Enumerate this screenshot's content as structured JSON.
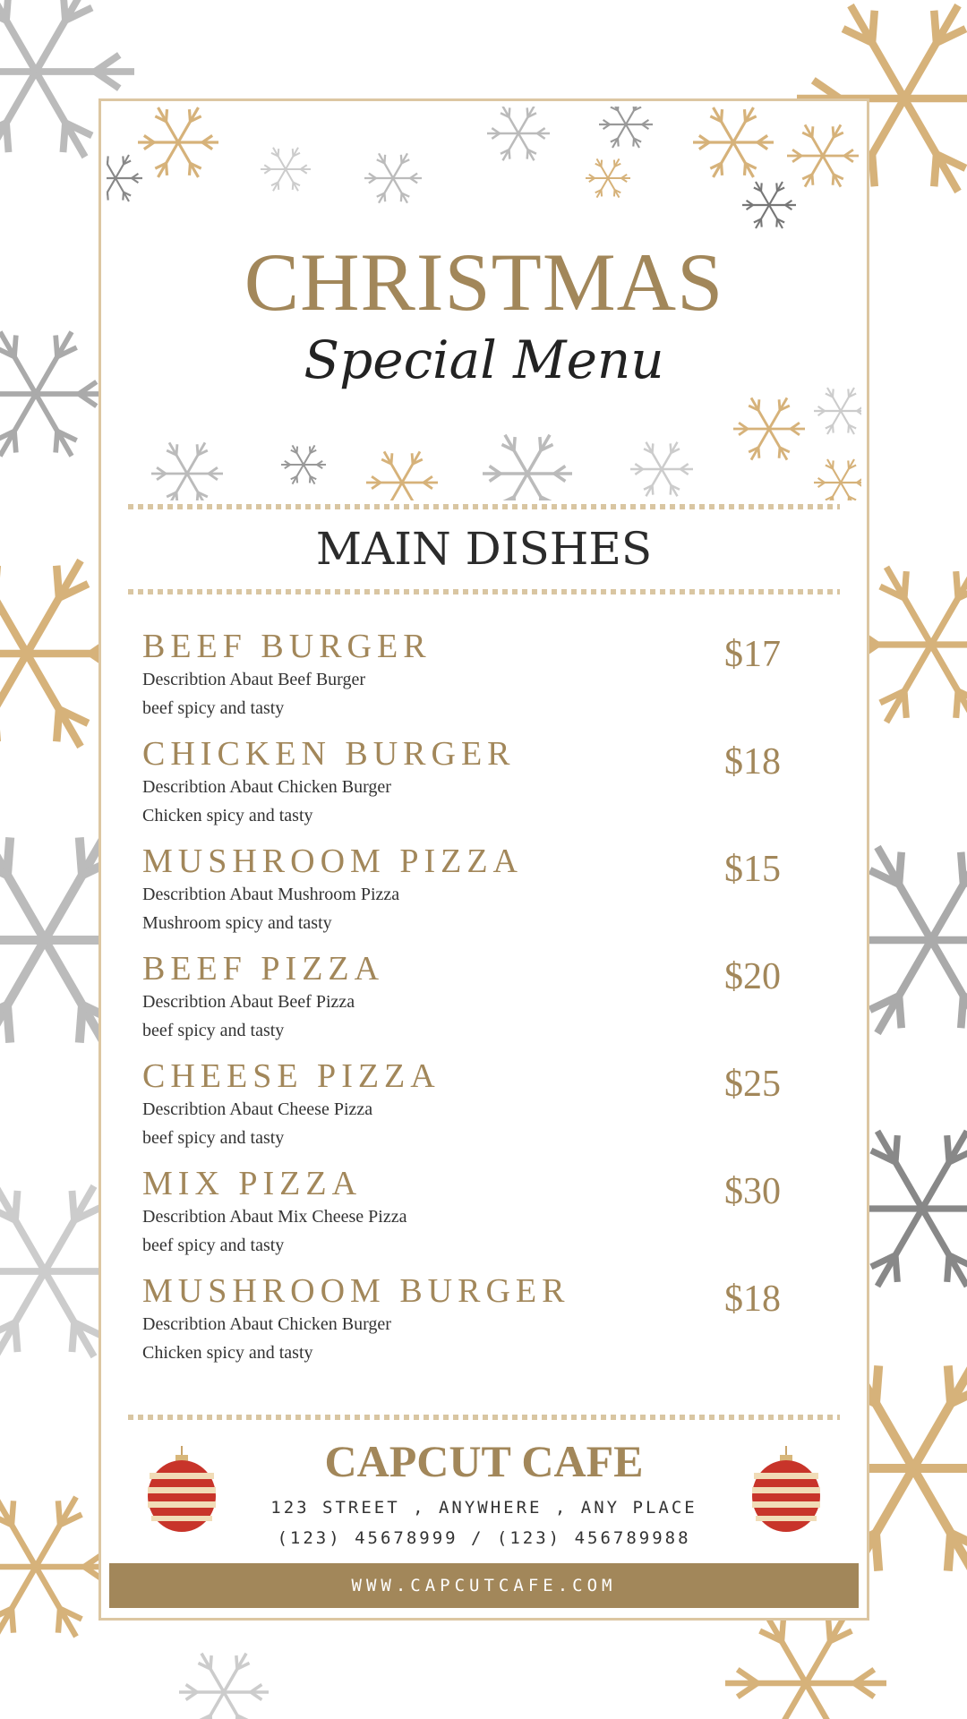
{
  "header": {
    "title": "CHRISTMAS",
    "subtitle": "Special Menu"
  },
  "section": {
    "title": "MAIN DISHES"
  },
  "items": [
    {
      "name": "BEEF BURGER",
      "desc1": "Describtion Abaut Beef Burger",
      "desc2": "beef spicy and tasty",
      "price": "$17"
    },
    {
      "name": "CHICKEN BURGER",
      "desc1": "Describtion Abaut Chicken Burger",
      "desc2": "Chicken spicy and tasty",
      "price": "$18"
    },
    {
      "name": "MUSHROOM PIZZA",
      "desc1": "Describtion Abaut Mushroom Pizza",
      "desc2": "Mushroom spicy and tasty",
      "price": "$15"
    },
    {
      "name": "BEEF PIZZA",
      "desc1": "Describtion Abaut Beef Pizza",
      "desc2": "beef spicy and tasty",
      "price": "$20"
    },
    {
      "name": "CHEESE PIZZA",
      "desc1": "Describtion Abaut Cheese Pizza",
      "desc2": "beef spicy and tasty",
      "price": "$25"
    },
    {
      "name": "MIX PIZZA",
      "desc1": "Describtion Abaut Mix Cheese Pizza",
      "desc2": "beef spicy and tasty",
      "price": "$30"
    },
    {
      "name": "MUSHROOM BURGER",
      "desc1": "Describtion Abaut Chicken Burger",
      "desc2": "Chicken spicy and tasty",
      "price": "$18"
    }
  ],
  "footer": {
    "name": "CAPCUT CAFE",
    "address": "123 STREET , ANYWHERE , ANY PLACE",
    "phone": "(123) 45678999 / (123) 456789988",
    "website": "WWW.CAPCUTCAFE.COM"
  },
  "colors": {
    "accent": "#a2875a",
    "border": "#dcc6a2",
    "text": "#333333"
  },
  "icons": [
    "snowflake-icon",
    "star-icon",
    "christmas-ornament-icon"
  ]
}
